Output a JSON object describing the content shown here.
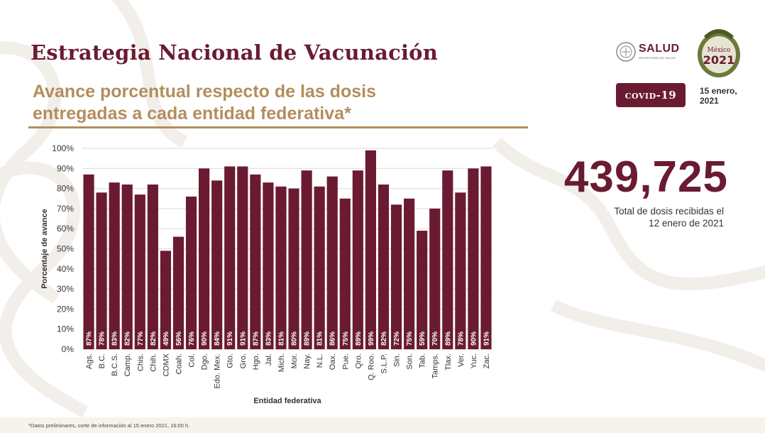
{
  "header": {
    "title": "Estrategia Nacional de Vacunación",
    "subtitle_line1": "Avance porcentual respecto de las dosis",
    "subtitle_line2": "entregadas a cada entidad federativa*"
  },
  "branding": {
    "salud_label": "SALUD",
    "salud_sublabel": "SECRETARÍA DE SALUD",
    "seal_line1": "México",
    "seal_line2": "2021",
    "covid_badge_main": "COVID",
    "covid_badge_num": "-19",
    "date_line1": "15 enero,",
    "date_line2": "2021"
  },
  "summary": {
    "total_doses": "439,725",
    "caption_line1": "Total de dosis recibidas el",
    "caption_line2": "12 enero de 2021"
  },
  "footnote": "*Datos preliminares, corte de información al 15 enero 2021, 16:00 h.",
  "colors": {
    "primary": "#6a1b31",
    "gold": "#b38e5d",
    "grid": "#d9d9d9"
  },
  "chart_data": {
    "type": "bar",
    "categories": [
      "Ags.",
      "B.C.",
      "B.C.S.",
      "Camp.",
      "Chis.",
      "Chih.",
      "CDMX",
      "Coah.",
      "Col.",
      "Dgo.",
      "Edo. Mex.",
      "Gto.",
      "Gro.",
      "Hgo.",
      "Jal.",
      "Mich.",
      "Mor.",
      "Nay.",
      "N.L.",
      "Oax.",
      "Pue.",
      "Qro.",
      "Q. Roo.",
      "S.L.P.",
      "Sin.",
      "Son.",
      "Tab.",
      "Tamps.",
      "Tlax.",
      "Ver.",
      "Yuc.",
      "Zac."
    ],
    "values": [
      87,
      78,
      83,
      82,
      77,
      82,
      49,
      56,
      76,
      90,
      84,
      91,
      91,
      87,
      83,
      81,
      80,
      89,
      81,
      86,
      75,
      89,
      99,
      82,
      72,
      75,
      59,
      70,
      89,
      78,
      90,
      91
    ],
    "data_labels": [
      "87%",
      "78%",
      "83%",
      "82%",
      "77%",
      "82%",
      "49%",
      "56%",
      "76%",
      "90%",
      "84%",
      "91%",
      "91%",
      "87%",
      "83%",
      "81%",
      "80%",
      "89%",
      "81%",
      "86%",
      "75%",
      "89%",
      "99%",
      "82%",
      "72%",
      "75%",
      "59%",
      "70%",
      "89%",
      "78%",
      "90%",
      "91%"
    ],
    "xlabel": "Entidad federativa",
    "ylabel": "Porcentaje de avance",
    "ylim": [
      0,
      100
    ],
    "yticks": [
      "0%",
      "10%",
      "20%",
      "30%",
      "40%",
      "50%",
      "60%",
      "70%",
      "80%",
      "90%",
      "100%"
    ],
    "grid": true
  }
}
